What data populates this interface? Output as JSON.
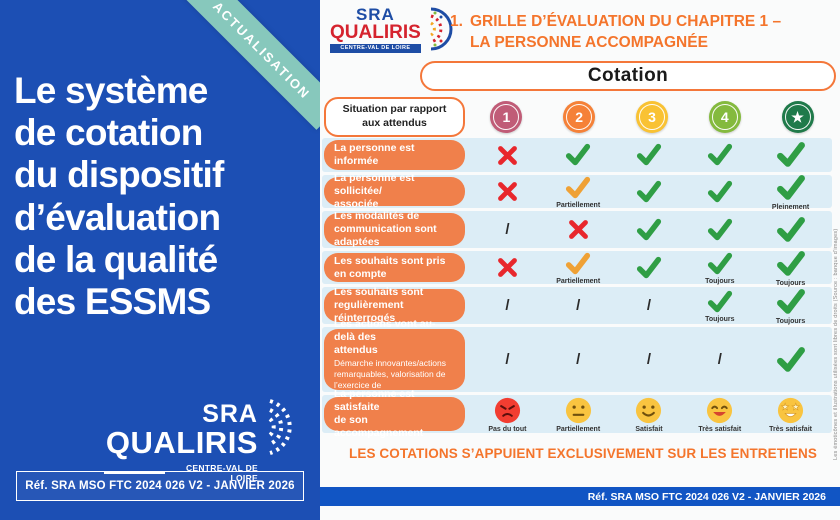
{
  "colors": {
    "panel_blue": "#1c4fb4",
    "ribbon_teal": "#87c8bc",
    "bar_blue": "#1155c4",
    "accent_orange": "#f4752c",
    "pill_orange": "#f0804b",
    "band_blue": "#dcedf6",
    "check_green": "#2f9e45",
    "check_partial_orange": "#efa135",
    "cross_red": "#e8272c",
    "logo_blue": "#1e4da5",
    "logo_red": "#d5232e"
  },
  "left_panel": {
    "ribbon": "ACTUALISATION",
    "title": "Le système\nde cotation\ndu dispositif\nd’évaluation\nde la qualité\ndes ESSMS",
    "logo": {
      "sra": "SRA",
      "qualiris": "QUALIRIS",
      "region": "CENTRE-VAL DE LOIRE"
    },
    "reference": "Réf. SRA MSO FTC 2024 026 V2 - JANVIER 2026"
  },
  "right_panel": {
    "logo": {
      "sra": "SRA",
      "qualiris": "QUALIRIS",
      "region": "CENTRE-VAL DE LOIRE"
    },
    "title": {
      "number": "1.",
      "lines": "GRILLE D’ÉVALUATION DU CHAPITRE 1 –\nLA PERSONNE ACCOMPAGNÉE"
    },
    "cotation_label": "Cotation",
    "situation_label": "Situation par rapport\naux attendus",
    "columns": [
      {
        "label": "1",
        "color": "#c05c77"
      },
      {
        "label": "2",
        "color": "#f58138"
      },
      {
        "label": "3",
        "color": "#f9c233"
      },
      {
        "label": "4",
        "color": "#84ba3e"
      },
      {
        "label": "★",
        "color": "#1f7a4a"
      }
    ],
    "rows": [
      {
        "label": "La personne est informée",
        "sub": "",
        "marks": [
          {
            "type": "cross"
          },
          {
            "type": "check"
          },
          {
            "type": "check"
          },
          {
            "type": "check"
          },
          {
            "type": "check"
          }
        ]
      },
      {
        "label": "La personne est sollicitée/\nassociée",
        "sub": "",
        "marks": [
          {
            "type": "cross"
          },
          {
            "type": "check_partial",
            "caption": "Partiellement"
          },
          {
            "type": "check"
          },
          {
            "type": "check"
          },
          {
            "type": "check",
            "caption": "Pleinement"
          }
        ]
      },
      {
        "label": "Les modalités de\ncommunication sont adaptées",
        "sub": "",
        "marks": [
          {
            "type": "slash"
          },
          {
            "type": "cross"
          },
          {
            "type": "check"
          },
          {
            "type": "check"
          },
          {
            "type": "check"
          }
        ]
      },
      {
        "label": "Les souhaits sont pris en compte",
        "sub": "",
        "marks": [
          {
            "type": "cross"
          },
          {
            "type": "check_partial",
            "caption": "Partiellement"
          },
          {
            "type": "check"
          },
          {
            "type": "check",
            "caption": "Toujours"
          },
          {
            "type": "check",
            "caption": "Toujours"
          }
        ]
      },
      {
        "label": "Les souhaits sont regulièrement\nréinterrogés",
        "sub": "",
        "marks": [
          {
            "type": "slash"
          },
          {
            "type": "slash"
          },
          {
            "type": "slash"
          },
          {
            "type": "check",
            "caption": "Toujours"
          },
          {
            "type": "check",
            "caption": "Toujours"
          }
        ]
      },
      {
        "label": "Les actions vont au-delà des\nattendus",
        "sub": "Démarche innovantes/actions remarquables, valorisation de l’exercice de l’autodétermination",
        "marks": [
          {
            "type": "slash"
          },
          {
            "type": "slash"
          },
          {
            "type": "slash"
          },
          {
            "type": "slash"
          },
          {
            "type": "check"
          }
        ]
      },
      {
        "label": "La personne est satisfaite\nde son accompagnement",
        "sub": "",
        "marks": [
          {
            "type": "emoji_angry",
            "caption": "Pas du tout"
          },
          {
            "type": "emoji_neutral",
            "caption": "Partiellement"
          },
          {
            "type": "emoji_smile",
            "caption": "Satisfait"
          },
          {
            "type": "emoji_happy",
            "caption": "Très satisfait"
          },
          {
            "type": "emoji_star",
            "caption": "Très satisfait"
          }
        ]
      }
    ],
    "footer": "LES COTATIONS S’APPUIENT EXCLUSIVEMENT SUR LES ENTRETIENS",
    "reference": "Réf. SRA MSO FTC 2024 026 V2 - JANVIER 2026",
    "side_note": "Les émoticônes et illustrations utilisées sont libres de droits (Source : banque d’images)"
  }
}
